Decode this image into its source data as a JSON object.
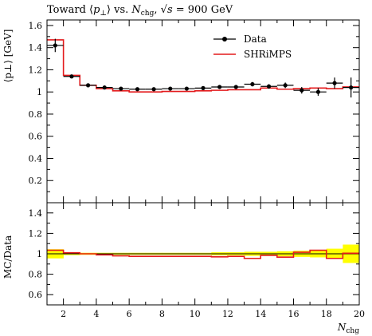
{
  "chart_data": {
    "type": "line",
    "title_parts": {
      "pre": "Toward ⟨",
      "p": "p",
      "p_sub": "⊥",
      "mid": "⟩ vs. ",
      "n": "N",
      "n_sub": "chg",
      "comma": ", √",
      "s": "s",
      "post": " = 900 GeV"
    },
    "xlabel": {
      "main": "N",
      "sub": "chg"
    },
    "ylabel_main": "⟨p⊥⟩ [GeV]",
    "ylabel_ratio": "MC/Data",
    "xlim": [
      1,
      20
    ],
    "ylim_main": [
      0,
      1.65
    ],
    "ylim_ratio": [
      0.5,
      1.5
    ],
    "x_ticks": [
      2,
      4,
      6,
      8,
      10,
      12,
      14,
      16,
      18,
      20
    ],
    "y_ticks_main": [
      0.2,
      0.4,
      0.6,
      0.8,
      1,
      1.2,
      1.4,
      1.6
    ],
    "y_ticks_ratio": [
      0.6,
      0.8,
      1,
      1.2,
      1.4
    ],
    "legend": {
      "placement": "top-right",
      "entries": [
        "Data",
        "SHRiMPS"
      ]
    },
    "series": [
      {
        "name": "Data",
        "style": "points",
        "color": "#000000",
        "x": [
          1.5,
          2.5,
          3.5,
          4.5,
          5.5,
          6.5,
          7.5,
          8.5,
          9.5,
          10.5,
          11.5,
          12.5,
          13.5,
          14.5,
          15.5,
          16.5,
          17.5,
          18.5,
          19.5
        ],
        "y": [
          1.42,
          1.14,
          1.06,
          1.04,
          1.03,
          1.025,
          1.025,
          1.03,
          1.03,
          1.035,
          1.045,
          1.045,
          1.07,
          1.05,
          1.06,
          1.015,
          1.0,
          1.08,
          1.04
        ],
        "yerr": [
          0.06,
          0.015,
          0.01,
          0.01,
          0.01,
          0.01,
          0.01,
          0.01,
          0.01,
          0.01,
          0.015,
          0.015,
          0.02,
          0.02,
          0.025,
          0.03,
          0.035,
          0.05,
          0.09
        ]
      },
      {
        "name": "SHRiMPS",
        "style": "step",
        "color": "#e41a1c",
        "edges": [
          1,
          2,
          3,
          4,
          5,
          6,
          7,
          8,
          9,
          10,
          11,
          12,
          13,
          14,
          15,
          16,
          17,
          18,
          19,
          20
        ],
        "y": [
          1.47,
          1.15,
          1.06,
          1.03,
          1.01,
          1.0,
          1.0,
          1.005,
          1.005,
          1.01,
          1.015,
          1.02,
          1.02,
          1.035,
          1.025,
          1.03,
          1.035,
          1.03,
          1.045
        ]
      }
    ],
    "ratio": {
      "band_color": "#ffff00",
      "band_halfwidth": [
        0.045,
        0.013,
        0.01,
        0.01,
        0.01,
        0.01,
        0.01,
        0.01,
        0.01,
        0.01,
        0.015,
        0.015,
        0.02,
        0.02,
        0.025,
        0.03,
        0.035,
        0.05,
        0.09
      ],
      "mc_over_data": [
        1.035,
        1.01,
        1.0,
        0.99,
        0.98,
        0.975,
        0.975,
        0.975,
        0.975,
        0.975,
        0.97,
        0.975,
        0.955,
        0.985,
        0.967,
        1.015,
        1.035,
        0.955,
        1.005
      ]
    }
  }
}
